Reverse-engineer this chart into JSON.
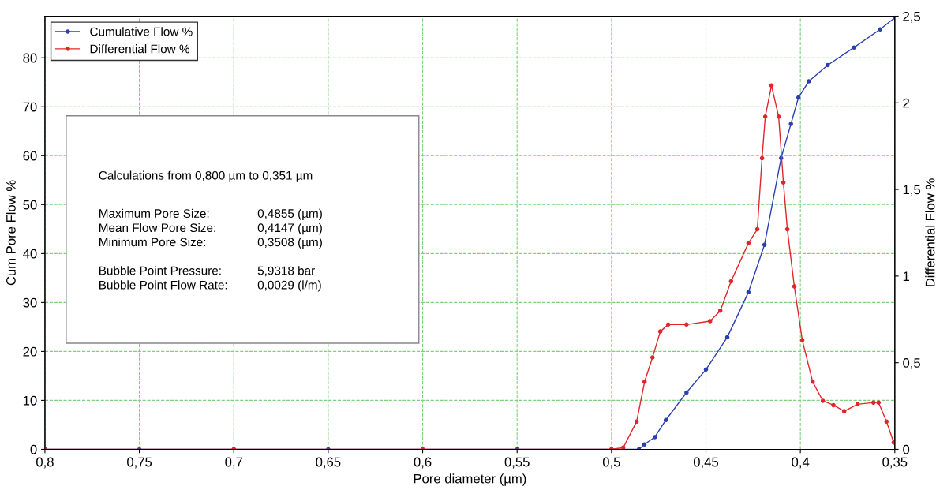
{
  "chart_data": {
    "type": "line",
    "xlabel": "Pore diameter (µm)",
    "ylabel": "Cum Pore Flow %",
    "y2label": "Differential Flow %",
    "xlim": [
      0.8,
      0.35
    ],
    "xticks": [
      {
        "value": 0.8,
        "label": "0,8"
      },
      {
        "value": 0.75,
        "label": "0,75"
      },
      {
        "value": 0.7,
        "label": "0,7"
      },
      {
        "value": 0.65,
        "label": "0,65"
      },
      {
        "value": 0.6,
        "label": "0,6"
      },
      {
        "value": 0.55,
        "label": "0,55"
      },
      {
        "value": 0.5,
        "label": "0,5"
      },
      {
        "value": 0.45,
        "label": "0,45"
      },
      {
        "value": 0.4,
        "label": "0,4"
      },
      {
        "value": 0.35,
        "label": "0,35"
      }
    ],
    "ylim": [
      0,
      88.5
    ],
    "yticks": [
      0,
      10,
      20,
      30,
      40,
      50,
      60,
      70,
      80
    ],
    "y2lim": [
      0,
      2.5
    ],
    "y2ticks": [
      0,
      {
        "value": 0.5,
        "label": "0,5"
      },
      1,
      {
        "value": 1.5,
        "label": "1,5"
      },
      2,
      {
        "value": 2.5,
        "label": "2,5"
      }
    ],
    "grid": true,
    "legend": "top left",
    "marker": "circle",
    "line_style": "solid",
    "series": [
      {
        "name": "Cumulative Flow %",
        "color": "#2b3fb0",
        "x": [
          0.8,
          0.75,
          0.7,
          0.65,
          0.6,
          0.55,
          0.5,
          0.4855,
          0.4826,
          0.4771,
          0.4712,
          0.4603,
          0.45,
          0.4387,
          0.4275,
          0.419,
          0.4102,
          0.405,
          0.401,
          0.3955,
          0.3855,
          0.3716,
          0.3578,
          0.35
        ],
        "values": [
          0,
          0,
          0,
          0,
          0,
          0,
          0,
          0,
          1.0,
          2.5,
          6.0,
          11.6,
          16.3,
          22.9,
          32.1,
          41.8,
          59.5,
          66.5,
          71.9,
          75.2,
          78.5,
          82.1,
          85.8,
          88.2
        ]
      },
      {
        "name": "Differential Flow %",
        "color": "#e0262a",
        "axis": "y2",
        "x": [
          0.8,
          0.7,
          0.6,
          0.5,
          0.4938,
          0.4867,
          0.4825,
          0.4783,
          0.4742,
          0.47,
          0.4603,
          0.4478,
          0.4424,
          0.4367,
          0.4275,
          0.4228,
          0.4203,
          0.4186,
          0.4153,
          0.4115,
          0.409,
          0.4069,
          0.4032,
          0.399,
          0.3935,
          0.3881,
          0.3825,
          0.3768,
          0.3697,
          0.3613,
          0.3586,
          0.3544,
          0.3506
        ],
        "values": [
          0,
          0,
          0,
          0,
          0.01,
          0.16,
          0.39,
          0.53,
          0.68,
          0.72,
          0.72,
          0.74,
          0.8,
          0.97,
          1.19,
          1.27,
          1.68,
          1.92,
          2.1,
          1.92,
          1.54,
          1.27,
          0.94,
          0.63,
          0.39,
          0.28,
          0.255,
          0.22,
          0.26,
          0.27,
          0.27,
          0.16,
          0.04
        ]
      }
    ],
    "annotations": [
      "Calculations from 0,800 µm to 0,351 µm",
      "Maximum Pore Size:\nMean Flow Pore Size:\nMinimum Pore Size:\n\nBubble Point Pressure:\nBubble Point Flow Rate:",
      "0,4855 (µm)\n0,4147 (µm)\n0,3508 (µm)\n\n5,9318 bar\n0,0029 (l/m)"
    ]
  }
}
